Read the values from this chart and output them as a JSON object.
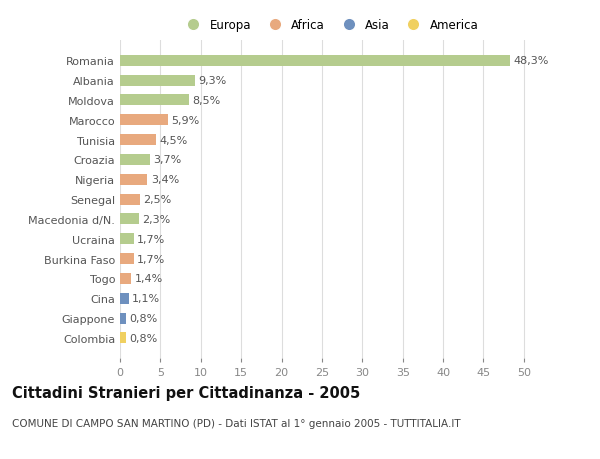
{
  "countries": [
    "Romania",
    "Albania",
    "Moldova",
    "Marocco",
    "Tunisia",
    "Croazia",
    "Nigeria",
    "Senegal",
    "Macedonia d/N.",
    "Ucraina",
    "Burkina Faso",
    "Togo",
    "Cina",
    "Giappone",
    "Colombia"
  ],
  "values": [
    48.3,
    9.3,
    8.5,
    5.9,
    4.5,
    3.7,
    3.4,
    2.5,
    2.3,
    1.7,
    1.7,
    1.4,
    1.1,
    0.8,
    0.8
  ],
  "labels": [
    "48,3%",
    "9,3%",
    "8,5%",
    "5,9%",
    "4,5%",
    "3,7%",
    "3,4%",
    "2,5%",
    "2,3%",
    "1,7%",
    "1,7%",
    "1,4%",
    "1,1%",
    "0,8%",
    "0,8%"
  ],
  "continents": [
    "Europa",
    "Europa",
    "Europa",
    "Africa",
    "Africa",
    "Europa",
    "Africa",
    "Africa",
    "Europa",
    "Europa",
    "Africa",
    "Africa",
    "Asia",
    "Asia",
    "America"
  ],
  "colors": {
    "Europa": "#b5cc8e",
    "Africa": "#e8a97e",
    "Asia": "#6e90be",
    "America": "#f0d060"
  },
  "title": "Cittadini Stranieri per Cittadinanza - 2005",
  "subtitle": "COMUNE DI CAMPO SAN MARTINO (PD) - Dati ISTAT al 1° gennaio 2005 - TUTTITALIA.IT",
  "xlim": [
    0,
    52
  ],
  "xticks": [
    0,
    5,
    10,
    15,
    20,
    25,
    30,
    35,
    40,
    45,
    50
  ],
  "background_color": "#ffffff",
  "grid_color": "#dddddd",
  "bar_height": 0.55,
  "label_fontsize": 8,
  "title_fontsize": 10.5,
  "subtitle_fontsize": 7.5,
  "tick_fontsize": 8,
  "legend_labels": [
    "Europa",
    "Africa",
    "Asia",
    "America"
  ]
}
